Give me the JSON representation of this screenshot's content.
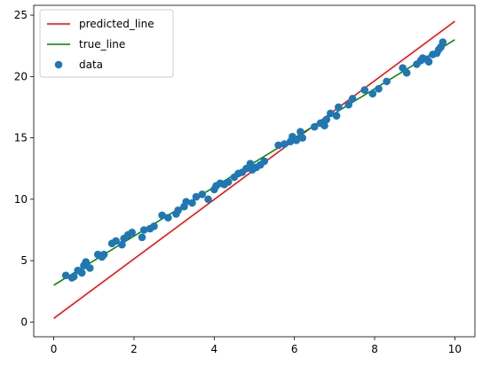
{
  "chart_data": {
    "type": "scatter",
    "title": "",
    "xlabel": "",
    "ylabel": "",
    "xlim": [
      -0.5,
      10.5
    ],
    "ylim": [
      -1.2,
      25.8
    ],
    "grid": false,
    "legend_position": "top-left",
    "x_ticks": [
      0,
      2,
      4,
      6,
      8,
      10
    ],
    "x_tick_labels": [
      "0",
      "2",
      "4",
      "6",
      "8",
      "10"
    ],
    "y_ticks": [
      0,
      5,
      10,
      15,
      20,
      25
    ],
    "y_tick_labels": [
      "0",
      "5",
      "10",
      "15",
      "20",
      "25"
    ],
    "lines": [
      {
        "name": "predicted_line",
        "color": "#ff0000",
        "x": [
          0,
          10
        ],
        "y": [
          0.3,
          24.5
        ]
      },
      {
        "name": "true_line",
        "color": "#008000",
        "x": [
          0,
          10
        ],
        "y": [
          3.0,
          23.0
        ]
      }
    ],
    "scatter": {
      "name": "data",
      "color": "#1f77b4",
      "x": [
        0.3,
        0.45,
        0.5,
        0.6,
        0.7,
        0.75,
        0.8,
        0.9,
        1.1,
        1.2,
        1.25,
        1.45,
        1.55,
        1.7,
        1.75,
        1.85,
        1.95,
        2.2,
        2.25,
        2.4,
        2.5,
        2.7,
        2.85,
        3.05,
        3.1,
        3.25,
        3.3,
        3.45,
        3.55,
        3.7,
        3.85,
        4.0,
        4.05,
        4.15,
        4.25,
        4.35,
        4.5,
        4.6,
        4.7,
        4.8,
        4.9,
        4.95,
        5.05,
        5.15,
        5.25,
        5.6,
        5.75,
        5.9,
        5.95,
        6.05,
        6.15,
        6.2,
        6.5,
        6.65,
        6.75,
        6.8,
        6.9,
        7.05,
        7.1,
        7.35,
        7.45,
        7.75,
        7.95,
        8.1,
        8.3,
        8.7,
        8.8,
        9.05,
        9.15,
        9.2,
        9.3,
        9.35,
        9.45,
        9.55,
        9.6,
        9.65,
        9.7
      ],
      "y": [
        3.8,
        3.6,
        3.7,
        4.2,
        4.0,
        4.6,
        4.9,
        4.4,
        5.5,
        5.3,
        5.5,
        6.4,
        6.6,
        6.3,
        6.8,
        7.1,
        7.3,
        6.9,
        7.5,
        7.6,
        7.8,
        8.7,
        8.5,
        8.8,
        9.1,
        9.4,
        9.8,
        9.7,
        10.2,
        10.4,
        10.0,
        10.8,
        11.1,
        11.3,
        11.2,
        11.4,
        11.8,
        12.1,
        12.2,
        12.5,
        12.9,
        12.4,
        12.6,
        12.8,
        13.1,
        14.4,
        14.5,
        14.7,
        15.1,
        14.8,
        15.5,
        15.0,
        15.9,
        16.2,
        16.0,
        16.5,
        17.0,
        16.8,
        17.5,
        17.7,
        18.2,
        18.9,
        18.6,
        19.0,
        19.6,
        20.7,
        20.3,
        21.0,
        21.3,
        21.5,
        21.4,
        21.2,
        21.8,
        21.9,
        22.2,
        22.4,
        22.8
      ]
    }
  }
}
